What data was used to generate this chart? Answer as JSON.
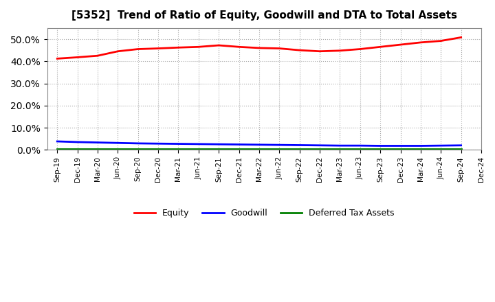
{
  "title": "[5352]  Trend of Ratio of Equity, Goodwill and DTA to Total Assets",
  "x_labels": [
    "Sep-19",
    "Dec-19",
    "Mar-20",
    "Jun-20",
    "Sep-20",
    "Dec-20",
    "Mar-21",
    "Jun-21",
    "Sep-21",
    "Dec-21",
    "Mar-22",
    "Jun-22",
    "Sep-22",
    "Dec-22",
    "Mar-23",
    "Jun-23",
    "Sep-23",
    "Dec-23",
    "Mar-24",
    "Jun-24",
    "Sep-24",
    "Dec-24"
  ],
  "equity": [
    41.2,
    41.8,
    42.5,
    44.5,
    45.5,
    45.8,
    46.2,
    46.5,
    47.2,
    46.5,
    46.0,
    45.8,
    45.0,
    44.5,
    44.8,
    45.5,
    46.5,
    47.5,
    48.5,
    49.2,
    50.8,
    null
  ],
  "goodwill": [
    3.8,
    3.5,
    3.3,
    3.1,
    2.9,
    2.8,
    2.7,
    2.6,
    2.5,
    2.4,
    2.3,
    2.2,
    2.1,
    2.0,
    1.9,
    1.9,
    1.8,
    1.8,
    1.8,
    1.9,
    2.0,
    null
  ],
  "dta": [
    0.4,
    0.4,
    0.4,
    0.4,
    0.4,
    0.4,
    0.4,
    0.4,
    0.4,
    0.4,
    0.4,
    0.4,
    0.4,
    0.4,
    0.4,
    0.4,
    0.4,
    0.4,
    0.4,
    0.4,
    0.4,
    null
  ],
  "equity_color": "#ff0000",
  "goodwill_color": "#0000ff",
  "dta_color": "#008000",
  "ylim": [
    0,
    55
  ],
  "yticks": [
    0,
    10,
    20,
    30,
    40,
    50
  ],
  "background_color": "#ffffff",
  "plot_bg_color": "#ffffff",
  "grid_color": "#aaaaaa",
  "legend_labels": [
    "Equity",
    "Goodwill",
    "Deferred Tax Assets"
  ]
}
